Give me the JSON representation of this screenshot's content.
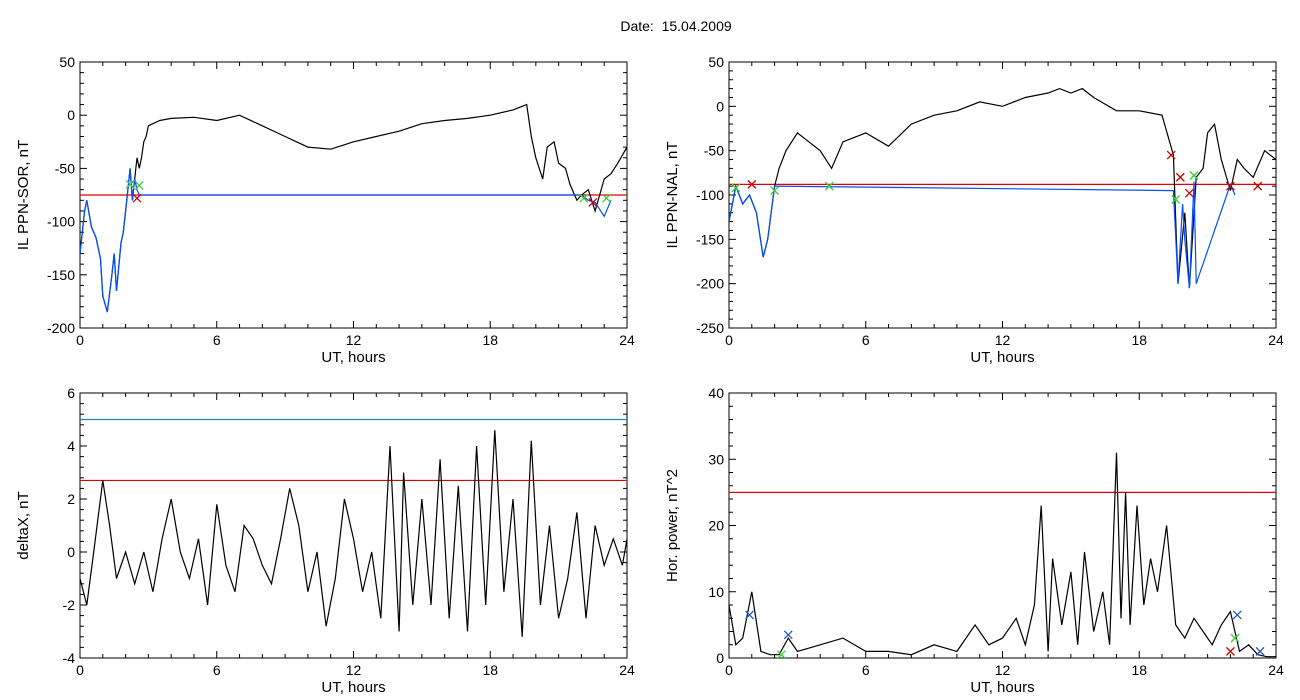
{
  "figure": {
    "title": "Date:  15.04.2009"
  },
  "chart_data": [
    {
      "type": "line",
      "ylabel": "IL PPN-SOR, nT",
      "xlabel": "UT, hours",
      "xlim": [
        0,
        24
      ],
      "ylim": [
        -200,
        50
      ],
      "xticks": [
        0,
        6,
        12,
        18,
        24
      ],
      "yticks": [
        -200,
        -150,
        -100,
        -50,
        0,
        50
      ],
      "threshold": -75,
      "threshold_color": "#e00000",
      "series_colors": [
        "#000000",
        "#0050ff"
      ],
      "series": [
        {
          "x": [
            0,
            0.2,
            0.3,
            0.5,
            0.7,
            0.9,
            1.0,
            1.2,
            1.4,
            1.5,
            1.6,
            1.8,
            1.9,
            2.0,
            2.1,
            2.2,
            2.3,
            2.4,
            2.5,
            2.6,
            2.7,
            2.8,
            2.9,
            3.0,
            3.2,
            3.5,
            4.0,
            5.0,
            6.0,
            7.0,
            8.0,
            9.0,
            10.0,
            11.0,
            12.0,
            13.0,
            14.0,
            15.0,
            16.0,
            17.0,
            18.0,
            19.0,
            19.6,
            19.8,
            20.0,
            20.3,
            20.5,
            20.8,
            21.0,
            21.3,
            21.5,
            21.8,
            22.0,
            22.3,
            22.6,
            23.0,
            23.3,
            23.6,
            24.0
          ],
          "y": [
            -130,
            -90,
            -80,
            -105,
            -115,
            -135,
            -170,
            -185,
            -150,
            -130,
            -165,
            -120,
            -110,
            -90,
            -70,
            -50,
            -80,
            -60,
            -40,
            -50,
            -40,
            -25,
            -20,
            -10,
            -8,
            -5,
            -3,
            -2,
            -5,
            0,
            -10,
            -20,
            -30,
            -32,
            -25,
            -20,
            -15,
            -8,
            -5,
            -3,
            0,
            5,
            10,
            -20,
            -40,
            -60,
            -30,
            -25,
            -45,
            -50,
            -65,
            -80,
            -75,
            -70,
            -90,
            -60,
            -55,
            -45,
            -30
          ]
        },
        {
          "x": [
            0,
            0.2,
            0.3,
            0.5,
            0.7,
            0.9,
            1.0,
            1.2,
            1.4,
            1.5,
            1.6,
            1.8,
            1.9,
            2.0,
            2.1,
            2.2,
            2.3,
            2.4,
            2.5,
            2.6,
            22.0,
            22.3,
            22.6,
            23.0,
            23.3
          ],
          "y": [
            -130,
            -90,
            -80,
            -105,
            -115,
            -135,
            -170,
            -185,
            -150,
            -130,
            -165,
            -120,
            -110,
            -90,
            -70,
            -50,
            -80,
            -60,
            -70,
            -75,
            -75,
            -80,
            -82,
            -95,
            -80
          ]
        }
      ],
      "markers": [
        {
          "x": 2.2,
          "y": -65,
          "color": "#33cc33"
        },
        {
          "x": 2.5,
          "y": -78,
          "color": "#cc0000"
        },
        {
          "x": 2.6,
          "y": -66,
          "color": "#33cc33"
        },
        {
          "x": 22.1,
          "y": -78,
          "color": "#33cc33"
        },
        {
          "x": 22.5,
          "y": -82,
          "color": "#cc0000"
        },
        {
          "x": 23.1,
          "y": -78,
          "color": "#33cc33"
        }
      ]
    },
    {
      "type": "line",
      "ylabel": "IL PPN-NAL, nT",
      "xlabel": "UT, hours",
      "xlim": [
        0,
        24
      ],
      "ylim": [
        -250,
        50
      ],
      "xticks": [
        0,
        6,
        12,
        18,
        24
      ],
      "yticks": [
        -250,
        -200,
        -150,
        -100,
        -50,
        0,
        50
      ],
      "threshold": -88,
      "threshold_color": "#e00000",
      "series_colors": [
        "#000000",
        "#0050ff"
      ],
      "series": [
        {
          "x": [
            0,
            0.3,
            0.6,
            0.9,
            1.2,
            1.5,
            1.7,
            2.0,
            2.2,
            2.5,
            3.0,
            3.5,
            4.0,
            4.5,
            5.0,
            6.0,
            7.0,
            8.0,
            9.0,
            10.0,
            11.0,
            12.0,
            13.0,
            14.0,
            14.5,
            15.0,
            15.5,
            16.0,
            17.0,
            18.0,
            19.0,
            19.5,
            19.7,
            20.0,
            20.2,
            20.5,
            20.8,
            21.0,
            21.3,
            21.6,
            22.0,
            22.3,
            22.6,
            23.0,
            23.5,
            24.0
          ],
          "y": [
            -130,
            -90,
            -110,
            -100,
            -120,
            -170,
            -150,
            -90,
            -70,
            -50,
            -30,
            -40,
            -50,
            -70,
            -40,
            -30,
            -45,
            -20,
            -10,
            -5,
            5,
            0,
            10,
            15,
            20,
            15,
            20,
            10,
            -5,
            -5,
            -10,
            -55,
            -200,
            -120,
            -205,
            -80,
            -70,
            -30,
            -20,
            -60,
            -95,
            -60,
            -70,
            -80,
            -50,
            -60
          ]
        },
        {
          "x": [
            0,
            0.3,
            0.6,
            0.9,
            1.2,
            1.5,
            1.7,
            2.0,
            19.5,
            19.7,
            19.9,
            20.0,
            20.2,
            20.4,
            20.5,
            22.0,
            22.2
          ],
          "y": [
            -130,
            -90,
            -110,
            -100,
            -120,
            -170,
            -150,
            -90,
            -95,
            -200,
            -110,
            -150,
            -205,
            -85,
            -200,
            -88,
            -100
          ]
        }
      ],
      "markers": [
        {
          "x": 0.3,
          "y": -92,
          "color": "#33cc33"
        },
        {
          "x": 1.0,
          "y": -88,
          "color": "#cc0000"
        },
        {
          "x": 2.0,
          "y": -95,
          "color": "#33cc33"
        },
        {
          "x": 4.4,
          "y": -90,
          "color": "#33cc33"
        },
        {
          "x": 19.4,
          "y": -55,
          "color": "#cc0000"
        },
        {
          "x": 19.6,
          "y": -105,
          "color": "#33cc33"
        },
        {
          "x": 19.8,
          "y": -80,
          "color": "#cc0000"
        },
        {
          "x": 20.2,
          "y": -98,
          "color": "#cc0000"
        },
        {
          "x": 20.4,
          "y": -78,
          "color": "#33cc33"
        },
        {
          "x": 22.0,
          "y": -90,
          "color": "#cc0000"
        },
        {
          "x": 23.2,
          "y": -90,
          "color": "#cc0000"
        }
      ]
    },
    {
      "type": "line",
      "ylabel": "deltaX, nT",
      "xlabel": "UT, hours",
      "xlim": [
        0,
        24
      ],
      "ylim": [
        -4,
        6
      ],
      "xticks": [
        0,
        6,
        12,
        18,
        24
      ],
      "yticks": [
        -4,
        -2,
        0,
        2,
        4,
        6
      ],
      "thresholds": [
        {
          "value": 5.0,
          "color": "#2080c0"
        },
        {
          "value": 2.7,
          "color": "#e00000"
        }
      ],
      "series_colors": [
        "#000000"
      ],
      "series": [
        {
          "x": [
            0,
            0.3,
            0.6,
            1.0,
            1.3,
            1.6,
            2.0,
            2.4,
            2.8,
            3.2,
            3.6,
            4.0,
            4.4,
            4.8,
            5.2,
            5.6,
            6.0,
            6.4,
            6.8,
            7.2,
            7.6,
            8.0,
            8.4,
            8.8,
            9.2,
            9.6,
            10.0,
            10.4,
            10.8,
            11.2,
            11.6,
            12.0,
            12.4,
            12.8,
            13.2,
            13.6,
            14.0,
            14.2,
            14.6,
            15.0,
            15.4,
            15.8,
            16.2,
            16.6,
            17.0,
            17.4,
            17.8,
            18.2,
            18.6,
            19.0,
            19.4,
            19.8,
            20.2,
            20.6,
            21.0,
            21.4,
            21.8,
            22.2,
            22.6,
            23.0,
            23.4,
            23.8,
            24.0
          ],
          "y": [
            -1,
            -2,
            0,
            2.7,
            1,
            -1,
            0,
            -1.2,
            0,
            -1.5,
            0.5,
            2,
            0,
            -1,
            0.5,
            -2,
            1.8,
            -0.5,
            -1.5,
            1,
            0.5,
            -0.5,
            -1.2,
            0.5,
            2.4,
            1,
            -1.5,
            0,
            -2.8,
            -1,
            2,
            0.5,
            -1.5,
            0,
            -2.5,
            4,
            -3,
            3,
            -2,
            2,
            -2,
            3.5,
            -2.5,
            2.5,
            -3,
            4,
            -2,
            4.6,
            -1.5,
            2,
            -3.2,
            4.2,
            -2,
            1,
            -2.5,
            -1,
            1.5,
            -2.5,
            1,
            -0.5,
            0.5,
            -0.5,
            0.5
          ]
        }
      ]
    },
    {
      "type": "line",
      "ylabel": "Hor. power, nT^2",
      "xlabel": "UT, hours",
      "xlim": [
        0,
        24
      ],
      "ylim": [
        0,
        40
      ],
      "xticks": [
        0,
        6,
        12,
        18,
        24
      ],
      "yticks": [
        0,
        10,
        20,
        30,
        40
      ],
      "threshold": 25,
      "threshold_color": "#e00000",
      "series_colors": [
        "#000000"
      ],
      "series": [
        {
          "x": [
            0,
            0.3,
            0.6,
            1.0,
            1.4,
            1.8,
            2.2,
            2.6,
            3.0,
            4.0,
            5.0,
            6.0,
            7.0,
            8.0,
            9.0,
            10.0,
            10.8,
            11.4,
            12.0,
            12.6,
            13.0,
            13.4,
            13.7,
            14.0,
            14.2,
            14.6,
            15.0,
            15.3,
            15.6,
            16.0,
            16.4,
            16.7,
            17.0,
            17.2,
            17.4,
            17.6,
            17.9,
            18.2,
            18.5,
            18.8,
            19.2,
            19.6,
            20.0,
            20.4,
            20.8,
            21.2,
            21.6,
            22.0,
            22.4,
            22.8,
            23.2,
            23.6,
            24.0
          ],
          "y": [
            8,
            2,
            3,
            10,
            1,
            0.5,
            0.5,
            3,
            1,
            2,
            3,
            1,
            1,
            0.5,
            2,
            1,
            5,
            2,
            3,
            6,
            2,
            8,
            23,
            1,
            15,
            5,
            13,
            2,
            16,
            4,
            10,
            2,
            31,
            6,
            25,
            5,
            23,
            8,
            15,
            10,
            20,
            5,
            3,
            6,
            4,
            2,
            5,
            7,
            1,
            2,
            0.5,
            0.2,
            0.2
          ]
        }
      ],
      "markers": [
        {
          "x": 0.9,
          "y": 6.5,
          "color": "#2255cc"
        },
        {
          "x": 2.6,
          "y": 3.5,
          "color": "#2255cc"
        },
        {
          "x": 2.3,
          "y": 0.5,
          "color": "#33cc33"
        },
        {
          "x": 22.3,
          "y": 6.5,
          "color": "#2255cc"
        },
        {
          "x": 22.2,
          "y": 3.0,
          "color": "#33cc33"
        },
        {
          "x": 22.0,
          "y": 1.0,
          "color": "#cc0000"
        },
        {
          "x": 23.3,
          "y": 1.0,
          "color": "#2255cc"
        }
      ]
    }
  ]
}
